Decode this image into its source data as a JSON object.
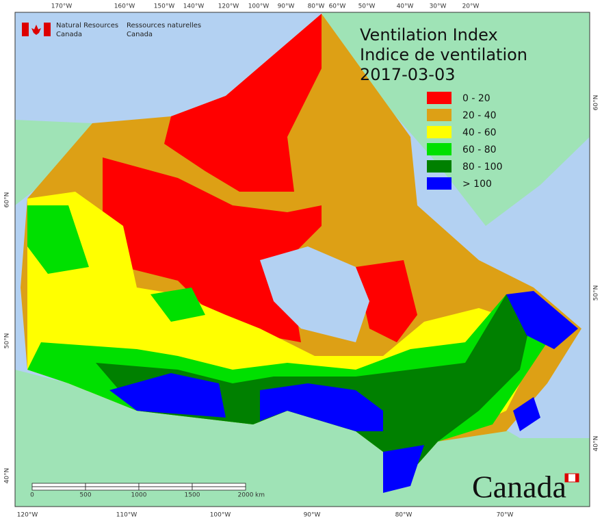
{
  "header": {
    "dept_en": [
      "Natural Resources",
      "Canada"
    ],
    "dept_fr": [
      "Ressources naturelles",
      "Canada"
    ]
  },
  "title": [
    "Ventilation Index",
    "Indice de ventilation",
    "2017-03-03"
  ],
  "legend": [
    {
      "label": "0 - 20",
      "color": "#ff0000"
    },
    {
      "label": "20 - 40",
      "color": "#dda015"
    },
    {
      "label": "40 - 60",
      "color": "#ffff00"
    },
    {
      "label": "60 - 80",
      "color": "#00e000"
    },
    {
      "label": "80 - 100",
      "color": "#008000"
    },
    {
      "label": "> 100",
      "color": "#0000ff"
    }
  ],
  "graticule": {
    "top": [
      "170°W",
      "160°W",
      "150°W",
      "140°W",
      "120°W",
      "100°W",
      "90°W",
      "80°W",
      "60°W",
      "50°W",
      "40°W",
      "30°W",
      "20°W"
    ],
    "bottom": [
      "120°W",
      "110°W",
      "100°W",
      "90°W",
      "80°W",
      "70°W"
    ],
    "left": [
      "60°N",
      "50°N",
      "40°N"
    ],
    "right": [
      "60°N",
      "50°N",
      "40°N"
    ]
  },
  "scale": {
    "labels": [
      "0",
      "500",
      "1000",
      "1500",
      "2000"
    ],
    "unit": "km"
  },
  "wordmark": "Canada"
}
